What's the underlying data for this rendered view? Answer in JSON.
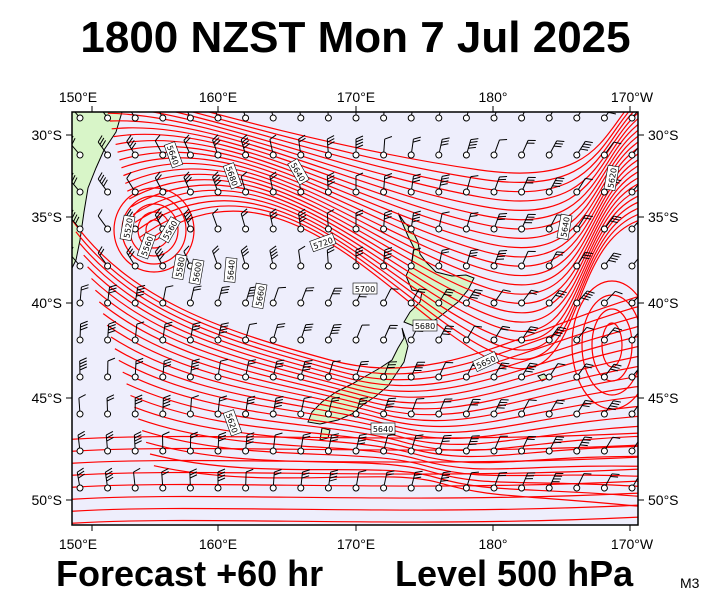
{
  "title": "1800 NZST Mon 7 Jul 2025",
  "forecast_label": "Forecast +60 hr",
  "level_label": "Level 500 hPa",
  "product_code": "M3",
  "colors": {
    "contour": "#ff0000",
    "ocean": "#eeeefc",
    "land": "#d8f5c8",
    "barb": "#000000"
  },
  "map": {
    "projection": "lat-lon",
    "lon_range": [
      "150°E",
      "170°W"
    ],
    "lat_range": [
      "51°S",
      "29°S"
    ],
    "top_lon_labels": [
      "150°E",
      "160°E",
      "170°E",
      "180°",
      "170°W"
    ],
    "bottom_lon_labels": [
      "150°E",
      "160°E",
      "170°E",
      "180°",
      "170°W"
    ],
    "left_lat_labels": [
      "30°S",
      "35°S",
      "40°S",
      "45°S",
      "50°S"
    ],
    "right_lat_labels": [
      "30°S",
      "35°S",
      "40°S",
      "45°S",
      "50°S"
    ],
    "contour_labels": [
      "5640",
      "5680",
      "5640",
      "5520",
      "5560",
      "5580",
      "5600",
      "5640",
      "5720",
      "5660",
      "5700",
      "5680",
      "5650",
      "5640",
      "5620",
      "5620",
      "5640",
      "5560"
    ],
    "low_centers": [
      "west of the map near 35°S 154°E",
      "east of the map near 42°S 167°W"
    ],
    "overlay": "geopotential height contours (red) and wind barbs (black)"
  }
}
